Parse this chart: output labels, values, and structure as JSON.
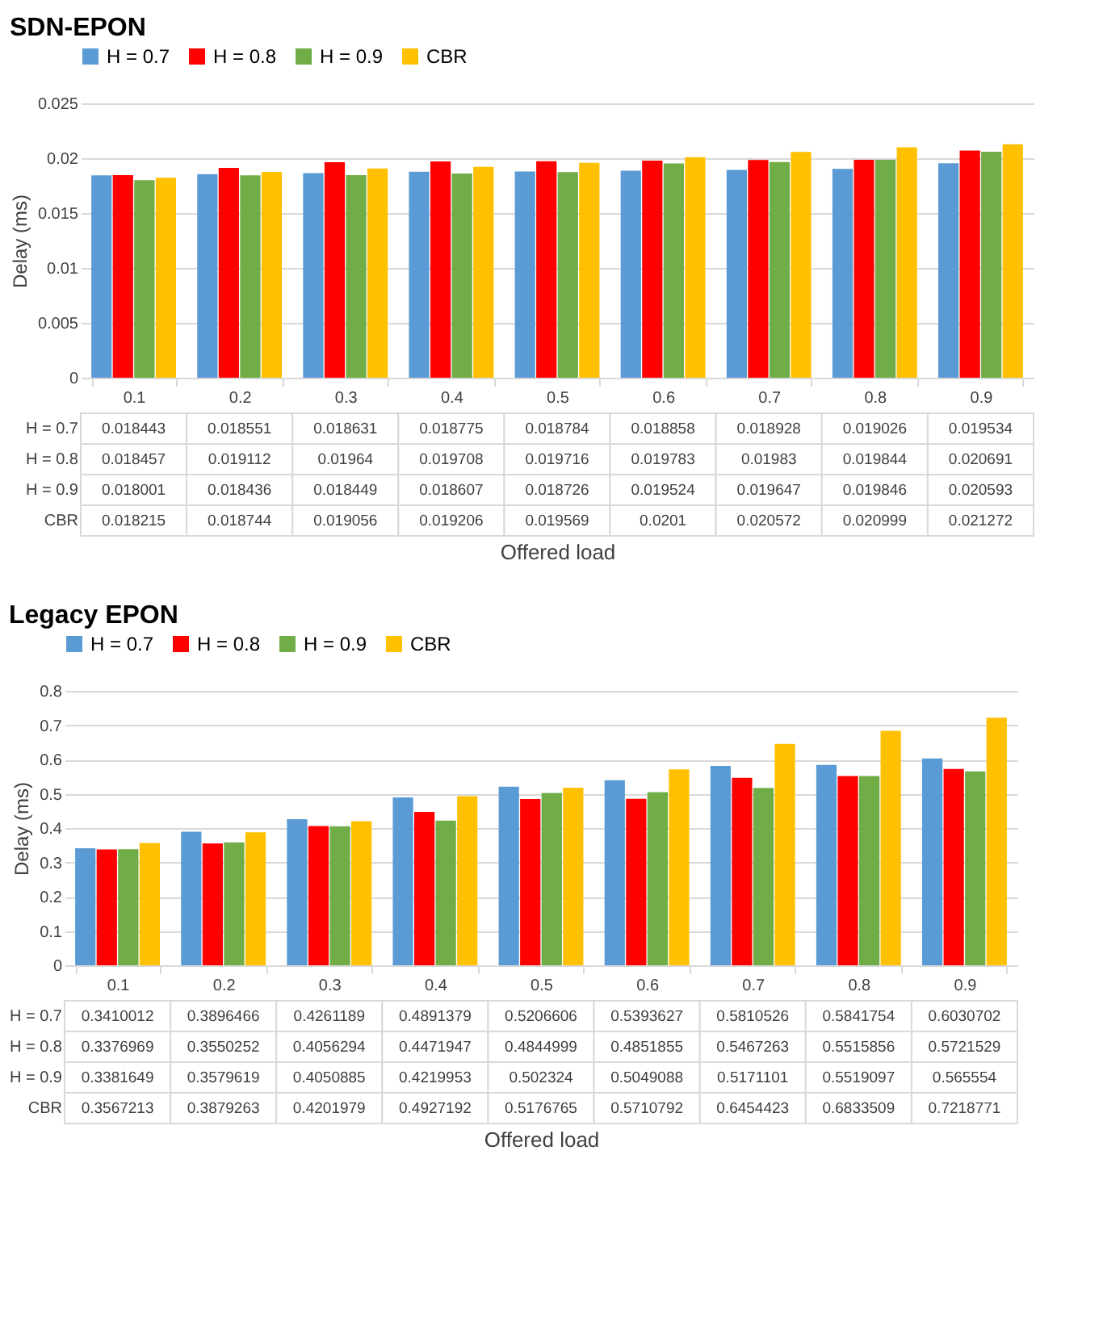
{
  "chart_data": [
    {
      "type": "bar",
      "title": "SDN-EPON",
      "xlabel": "Offered load",
      "ylabel": "Delay (ms)",
      "categories": [
        "0.1",
        "0.2",
        "0.3",
        "0.4",
        "0.5",
        "0.6",
        "0.7",
        "0.8",
        "0.9"
      ],
      "series": [
        {
          "name": "H = 0.7",
          "color": "#5b9bd5",
          "values": [
            0.018443,
            0.018551,
            0.018631,
            0.018775,
            0.018784,
            0.018858,
            0.018928,
            0.019026,
            0.019534
          ]
        },
        {
          "name": "H = 0.8",
          "color": "#ff0000",
          "values": [
            0.018457,
            0.019112,
            0.01964,
            0.019708,
            0.019716,
            0.019783,
            0.01983,
            0.019844,
            0.020691
          ]
        },
        {
          "name": "H = 0.9",
          "color": "#70ad47",
          "values": [
            0.018001,
            0.018436,
            0.018449,
            0.018607,
            0.018726,
            0.019524,
            0.019647,
            0.019846,
            0.020593
          ]
        },
        {
          "name": "CBR",
          "color": "#ffc000",
          "values": [
            0.018215,
            0.018744,
            0.019056,
            0.019206,
            0.019569,
            0.0201,
            0.020572,
            0.020999,
            0.021272
          ]
        }
      ],
      "ylim": [
        0,
        0.025
      ],
      "yticks": [
        0,
        0.005,
        0.01,
        0.015,
        0.02,
        0.025
      ],
      "grid": "y",
      "legend": "top",
      "data_labels": true
    },
    {
      "type": "bar",
      "title": "Legacy EPON",
      "xlabel": "Offered load",
      "ylabel": "Delay (ms)",
      "categories": [
        "0.1",
        "0.2",
        "0.3",
        "0.4",
        "0.5",
        "0.6",
        "0.7",
        "0.8",
        "0.9"
      ],
      "series": [
        {
          "name": "H = 0.7",
          "color": "#5b9bd5",
          "values": [
            0.3410012,
            0.3896466,
            0.4261189,
            0.4891379,
            0.5206606,
            0.5393627,
            0.5810526,
            0.5841754,
            0.6030702
          ]
        },
        {
          "name": "H = 0.8",
          "color": "#ff0000",
          "values": [
            0.3376969,
            0.3550252,
            0.4056294,
            0.4471947,
            0.4844999,
            0.4851855,
            0.5467263,
            0.5515856,
            0.5721529
          ]
        },
        {
          "name": "H = 0.9",
          "color": "#70ad47",
          "values": [
            0.3381649,
            0.3579619,
            0.4050885,
            0.4219953,
            0.502324,
            0.5049088,
            0.5171101,
            0.5519097,
            0.565554
          ]
        },
        {
          "name": "CBR",
          "color": "#ffc000",
          "values": [
            0.3567213,
            0.3879263,
            0.4201979,
            0.4927192,
            0.5176765,
            0.5710792,
            0.6454423,
            0.6833509,
            0.7218771
          ]
        }
      ],
      "ylim": [
        0,
        0.8
      ],
      "yticks": [
        0,
        0.1,
        0.2,
        0.3,
        0.4,
        0.5,
        0.6,
        0.7,
        0.8
      ],
      "grid": "y",
      "legend": "top",
      "data_labels": true
    }
  ]
}
